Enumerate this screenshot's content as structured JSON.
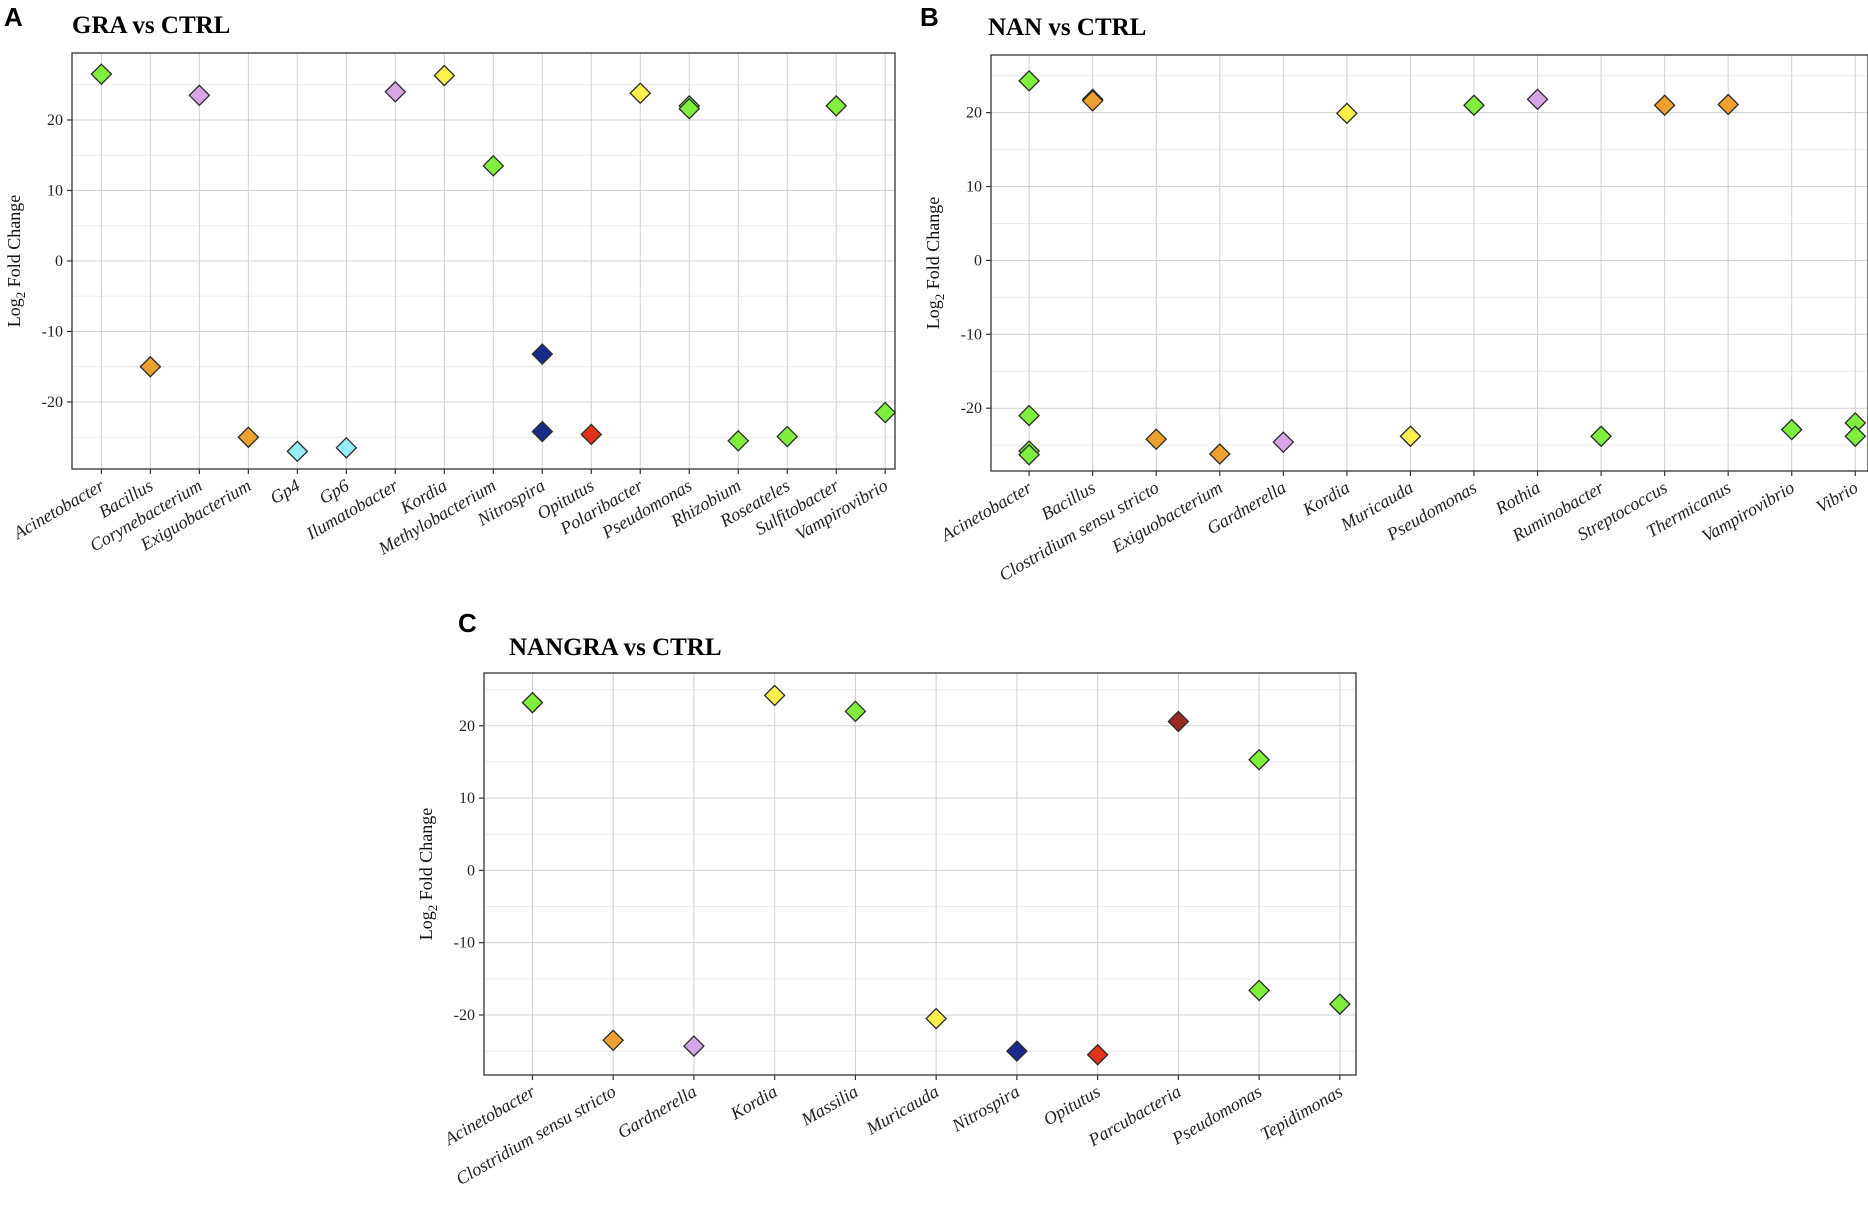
{
  "panels": [
    {
      "letter": "A",
      "title": "GRA vs CTRL"
    },
    {
      "letter": "B",
      "title": "NAN vs CTRL"
    },
    {
      "letter": "C",
      "title": "NANGRA vs CTRL"
    }
  ],
  "colors": {
    "green": "#7fee3c",
    "orange": "#eda22f",
    "purple": "#d6a6e4",
    "cyan": "#97eef6",
    "yellow": "#fbf14e",
    "navy": "#1a2a8a",
    "red": "#e03318",
    "darkred": "#9a2a24",
    "outline": "#2b2b2b",
    "grid_major": "#d0d0d0",
    "grid_minor": "#ececec"
  },
  "chart_data": [
    {
      "type": "scatter",
      "title": "GRA vs CTRL",
      "xlabel": "",
      "ylabel": "Log2 Fold Change",
      "ylabel_main": "Log",
      "ylabel_sub": "2",
      "ylabel_rest": " Fold Change",
      "ylim": [
        -29.5,
        29.5
      ],
      "yticks": [
        -20,
        -10,
        0,
        10,
        20
      ],
      "categories": [
        "Acinetobacter",
        "Bacillus",
        "Corynebacterium",
        "Exiguobacterium",
        "Gp4",
        "Gp6",
        "Ilumatobacter",
        "Kordia",
        "Methylobacterium",
        "Nitrospira",
        "Opitutus",
        "Polaribacter",
        "Pseudomonas",
        "Rhizobium",
        "Roseateles",
        "Sulfitobacter",
        "Vampirovibrio"
      ],
      "points": [
        {
          "category": "Acinetobacter",
          "value": 26.5,
          "color": "green"
        },
        {
          "category": "Bacillus",
          "value": -15,
          "color": "orange"
        },
        {
          "category": "Corynebacterium",
          "value": 23.5,
          "color": "purple"
        },
        {
          "category": "Exiguobacterium",
          "value": -25,
          "color": "orange"
        },
        {
          "category": "Gp4",
          "value": -27,
          "color": "cyan"
        },
        {
          "category": "Gp6",
          "value": -26.5,
          "color": "cyan"
        },
        {
          "category": "Ilumatobacter",
          "value": 24,
          "color": "purple"
        },
        {
          "category": "Kordia",
          "value": 26.3,
          "color": "yellow"
        },
        {
          "category": "Methylobacterium",
          "value": 13.5,
          "color": "green"
        },
        {
          "category": "Nitrospira",
          "value": -13.2,
          "color": "navy"
        },
        {
          "category": "Nitrospira",
          "value": -24.2,
          "color": "navy"
        },
        {
          "category": "Opitutus",
          "value": -24.6,
          "color": "red"
        },
        {
          "category": "Polaribacter",
          "value": 23.8,
          "color": "yellow"
        },
        {
          "category": "Pseudomonas",
          "value": 22,
          "color": "green"
        },
        {
          "category": "Pseudomonas",
          "value": 21.6,
          "color": "green"
        },
        {
          "category": "Rhizobium",
          "value": -25.5,
          "color": "green"
        },
        {
          "category": "Roseateles",
          "value": -24.9,
          "color": "green"
        },
        {
          "category": "Sulfitobacter",
          "value": 22,
          "color": "green"
        },
        {
          "category": "Vampirovibrio",
          "value": -21.5,
          "color": "green"
        }
      ]
    },
    {
      "type": "scatter",
      "title": "NAN vs CTRL",
      "xlabel": "",
      "ylabel": "Log2 Fold Change",
      "ylabel_main": "Log",
      "ylabel_sub": "2",
      "ylabel_rest": " Fold Change",
      "ylim": [
        -28.5,
        27.8
      ],
      "yticks": [
        -20,
        -10,
        0,
        10,
        20
      ],
      "categories": [
        "Acinetobacter",
        "Bacillus",
        "Clostridium sensu stricto",
        "Exiguobacterium",
        "Gardnerella",
        "Kordia",
        "Muricauda",
        "Pseudomonas",
        "Rothia",
        "Ruminobacter",
        "Streptococcus",
        "Thermicanus",
        "Vampirovibrio",
        "Vibrio"
      ],
      "points": [
        {
          "category": "Acinetobacter",
          "value": 24.3,
          "color": "green"
        },
        {
          "category": "Acinetobacter",
          "value": -21,
          "color": "green"
        },
        {
          "category": "Acinetobacter",
          "value": -25.8,
          "color": "green"
        },
        {
          "category": "Acinetobacter",
          "value": -26.3,
          "color": "green"
        },
        {
          "category": "Bacillus",
          "value": 21.8,
          "color": "orange"
        },
        {
          "category": "Bacillus",
          "value": 21.6,
          "color": "orange"
        },
        {
          "category": "Clostridium sensu stricto",
          "value": -24.2,
          "color": "orange"
        },
        {
          "category": "Exiguobacterium",
          "value": -26.2,
          "color": "orange"
        },
        {
          "category": "Gardnerella",
          "value": -24.6,
          "color": "purple"
        },
        {
          "category": "Kordia",
          "value": 19.9,
          "color": "yellow"
        },
        {
          "category": "Muricauda",
          "value": -23.8,
          "color": "yellow"
        },
        {
          "category": "Pseudomonas",
          "value": 21,
          "color": "green"
        },
        {
          "category": "Rothia",
          "value": 21.8,
          "color": "purple"
        },
        {
          "category": "Ruminobacter",
          "value": -23.8,
          "color": "green"
        },
        {
          "category": "Streptococcus",
          "value": 21,
          "color": "orange"
        },
        {
          "category": "Thermicanus",
          "value": 21.1,
          "color": "orange"
        },
        {
          "category": "Vampirovibrio",
          "value": -22.9,
          "color": "green"
        },
        {
          "category": "Vibrio",
          "value": -22,
          "color": "green"
        },
        {
          "category": "Vibrio",
          "value": -23.8,
          "color": "green"
        }
      ]
    },
    {
      "type": "scatter",
      "title": "NANGRA vs CTRL",
      "xlabel": "",
      "ylabel": "Log2 Fold Change",
      "ylabel_main": "Log",
      "ylabel_sub": "2",
      "ylabel_rest": " Fold Change",
      "ylim": [
        -28.3,
        27.3
      ],
      "yticks": [
        -20,
        -10,
        0,
        10,
        20
      ],
      "categories": [
        "Acinetobacter",
        "Clostridium sensu stricto",
        "Gardnerella",
        "Kordia",
        "Massilia",
        "Muricauda",
        "Nitrospira",
        "Opitutus",
        "Parcubacteria",
        "Pseudomonas",
        "Tepidimonas"
      ],
      "points": [
        {
          "category": "Acinetobacter",
          "value": 23.2,
          "color": "green"
        },
        {
          "category": "Clostridium sensu stricto",
          "value": -23.5,
          "color": "orange"
        },
        {
          "category": "Gardnerella",
          "value": -24.3,
          "color": "purple"
        },
        {
          "category": "Kordia",
          "value": 24.2,
          "color": "yellow"
        },
        {
          "category": "Massilia",
          "value": 22,
          "color": "green"
        },
        {
          "category": "Muricauda",
          "value": -20.5,
          "color": "yellow"
        },
        {
          "category": "Nitrospira",
          "value": -25,
          "color": "navy"
        },
        {
          "category": "Opitutus",
          "value": -25.5,
          "color": "red"
        },
        {
          "category": "Parcubacteria",
          "value": 20.6,
          "color": "darkred"
        },
        {
          "category": "Pseudomonas",
          "value": 15.3,
          "color": "green"
        },
        {
          "category": "Pseudomonas",
          "value": -16.6,
          "color": "green"
        },
        {
          "category": "Tepidimonas",
          "value": -18.5,
          "color": "green"
        }
      ]
    }
  ]
}
